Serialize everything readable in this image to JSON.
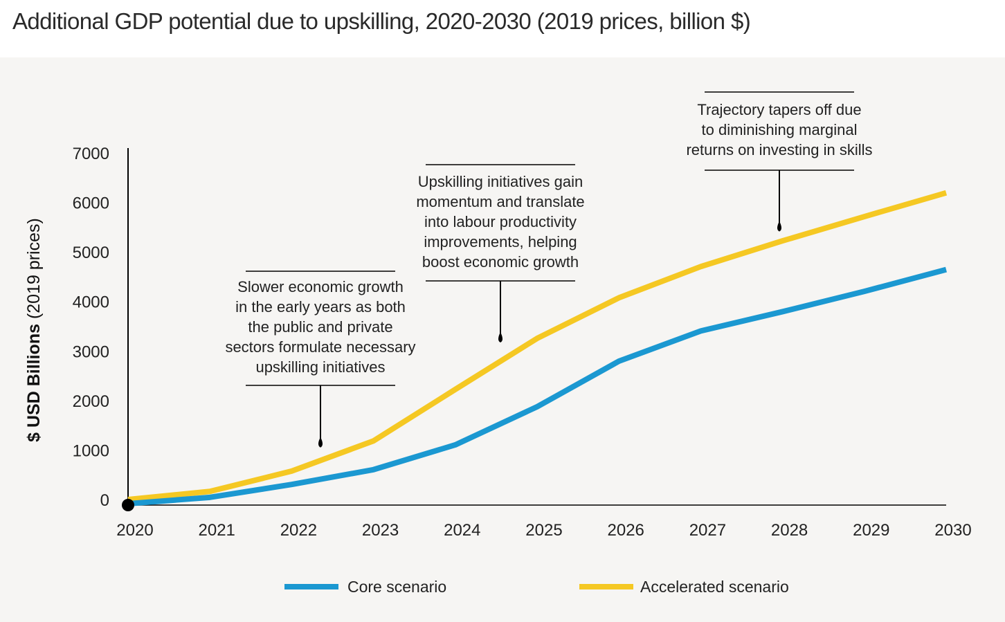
{
  "title": "Additional GDP potential due to upskilling, 2020-2030 (2019 prices, billion $)",
  "colors": {
    "core": "#1b98d1",
    "accelerated": "#f5c823",
    "axis": "#000000",
    "background": "#f6f5f3"
  },
  "chart_data": {
    "type": "line",
    "title": "Additional GDP potential due to upskilling, 2020-2030 (2019 prices, billion $)",
    "xlabel": "",
    "ylabel_bold": "$ USD Billions",
    "ylabel_regular": " (2019 prices)",
    "ylabel": "$ USD Billions (2019 prices)",
    "x": [
      2020,
      2021,
      2022,
      2023,
      2024,
      2025,
      2026,
      2027,
      2028,
      2029,
      2030
    ],
    "x_tick_labels": [
      "2020",
      "2021",
      "2022",
      "2023",
      "2024",
      "2025",
      "2026",
      "2027",
      "2028",
      "2029",
      "2030"
    ],
    "y_ticks": [
      0,
      1000,
      2000,
      3000,
      4000,
      5000,
      6000,
      7000
    ],
    "y_tick_labels": [
      "0",
      "1000",
      "2000",
      "3000",
      "4000",
      "5000",
      "6000",
      "7000"
    ],
    "ylim": [
      0,
      7000
    ],
    "grid": false,
    "legend_position": "bottom",
    "series": [
      {
        "name": "Core scenario",
        "color": "#1b98d1",
        "values": [
          0,
          100,
          360,
          660,
          1160,
          1930,
          2850,
          3460,
          3850,
          4260,
          4700
        ]
      },
      {
        "name": "Accelerated scenario",
        "color": "#f5c823",
        "values": [
          0,
          220,
          630,
          1240,
          2280,
          3310,
          4130,
          4760,
          5280,
          5770,
          6250
        ]
      }
    ],
    "origin_marker": {
      "x": 2020,
      "y": 0
    },
    "annotations": [
      {
        "lines": [
          "Slower economic growth",
          "in the early years as both",
          "the public and private",
          "sectors formulate necessary",
          "upskilling initiatives"
        ],
        "pointer_x": 2022.3,
        "pointer_y": 1150
      },
      {
        "lines": [
          "Upskilling initiatives gain",
          "momentum and translate",
          "into labour productivity",
          "improvements, helping",
          "boost economic growth"
        ],
        "pointer_x": 2024.5,
        "pointer_y": 3270
      },
      {
        "lines": [
          "Trajectory tapers off due",
          "to diminishing marginal",
          "returns on investing in skills"
        ],
        "pointer_x": 2027.95,
        "pointer_y": 5510
      }
    ]
  }
}
